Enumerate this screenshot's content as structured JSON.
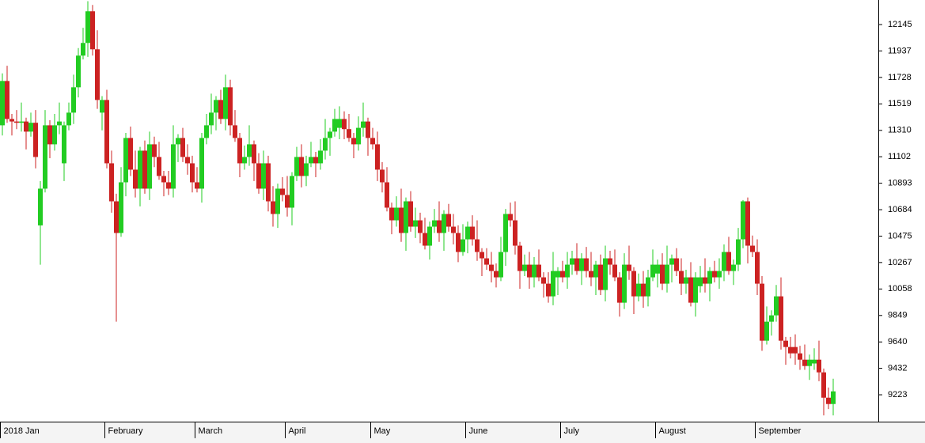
{
  "chart_data": {
    "type": "candlestick",
    "up_color": "#22cc22",
    "down_color": "#cc2222",
    "ylim": [
      9011,
      12339
    ],
    "yticks": [
      9223,
      9432,
      9640,
      9849,
      10058,
      10267,
      10475,
      10684,
      10893,
      11102,
      11310,
      11519,
      11728,
      11937,
      12145
    ],
    "categories": [
      "2018 Jan",
      null,
      null,
      null,
      null,
      null,
      null,
      null,
      null,
      null,
      null,
      null,
      null,
      null,
      null,
      null,
      null,
      null,
      null,
      null,
      null,
      null,
      "February",
      null,
      null,
      null,
      null,
      null,
      null,
      null,
      null,
      null,
      null,
      null,
      null,
      null,
      null,
      null,
      null,
      null,
      null,
      "March",
      null,
      null,
      null,
      null,
      null,
      null,
      null,
      null,
      null,
      null,
      null,
      null,
      null,
      null,
      null,
      null,
      null,
      null,
      "April",
      null,
      null,
      null,
      null,
      null,
      null,
      null,
      null,
      null,
      null,
      null,
      null,
      null,
      null,
      null,
      null,
      null,
      "May",
      null,
      null,
      null,
      null,
      null,
      null,
      null,
      null,
      null,
      null,
      null,
      null,
      null,
      null,
      null,
      null,
      null,
      null,
      null,
      "June",
      null,
      null,
      null,
      null,
      null,
      null,
      null,
      null,
      null,
      null,
      null,
      null,
      null,
      null,
      null,
      null,
      null,
      null,
      null,
      "July",
      null,
      null,
      null,
      null,
      null,
      null,
      null,
      null,
      null,
      null,
      null,
      null,
      null,
      null,
      null,
      null,
      null,
      null,
      null,
      "August",
      null,
      null,
      null,
      null,
      null,
      null,
      null,
      null,
      null,
      null,
      null,
      null,
      null,
      null,
      null,
      null,
      null,
      null,
      null,
      null,
      "September",
      null,
      null,
      null,
      null,
      null,
      null,
      null,
      null,
      null,
      null,
      null,
      null,
      null,
      null,
      null,
      null
    ],
    "open": [
      11350,
      11700,
      11400,
      11380,
      11370,
      11380,
      11300,
      11370,
      10560,
      10850,
      11350,
      11200,
      11350,
      11050,
      11350,
      11450,
      11650,
      11900,
      12000,
      12250,
      11950,
      11450,
      11550,
      11050,
      10750,
      10500,
      10900,
      11250,
      11000,
      10850,
      11150,
      10850,
      11200,
      11100,
      10950,
      10900,
      10850,
      11200,
      11250,
      11100,
      11050,
      10900,
      10850,
      11250,
      11350,
      11450,
      11550,
      11400,
      11650,
      11350,
      11250,
      11050,
      11100,
      11200,
      11050,
      10850,
      11050,
      10750,
      10650,
      10850,
      10800,
      10700,
      10950,
      11100,
      10950,
      11050,
      11100,
      11050,
      11150,
      11250,
      11300,
      11330,
      11400,
      11320,
      11250,
      11200,
      11330,
      11380,
      11250,
      11200,
      11000,
      10900,
      10700,
      10600,
      10700,
      10500,
      10750,
      10550,
      10600,
      10500,
      10400,
      10550,
      10600,
      10500,
      10650,
      10550,
      10500,
      10350,
      10450,
      10550,
      10450,
      10350,
      10300,
      10250,
      10200,
      10150,
      10350,
      10650,
      10600,
      10400,
      10200,
      10250,
      10150,
      10250,
      10150,
      10100,
      10000,
      10150,
      10200,
      10150,
      10250,
      10300,
      10200,
      10300,
      10200,
      10150,
      10250,
      10050,
      10300,
      10250,
      10150,
      9950,
      10250,
      10200,
      10000,
      10100,
      10000,
      10150,
      10180,
      10250,
      10100,
      10250,
      10300,
      10200,
      10100,
      10150,
      9950,
      10080,
      10150,
      10100,
      10200,
      10150,
      10200,
      10350,
      10200,
      10250,
      10450,
      10750,
      10400,
      10350,
      10100,
      9650,
      9800,
      9850,
      10000,
      9650,
      9600,
      9600,
      9550,
      9500,
      9450,
      9470,
      9500,
      9400,
      9200,
      9150
    ],
    "high": [
      11760,
      11820,
      11440,
      11470,
      11530,
      11410,
      11450,
      11470,
      10910,
      11470,
      11390,
      11440,
      11530,
      11380,
      11530,
      11750,
      11960,
      12120,
      12330,
      12300,
      12100,
      11580,
      11630,
      11150,
      10810,
      11020,
      11290,
      11340,
      11150,
      11180,
      11230,
      11300,
      11260,
      11220,
      10990,
      10990,
      11350,
      11280,
      11330,
      11200,
      11110,
      11020,
      11290,
      11440,
      11600,
      11580,
      11630,
      11750,
      11710,
      11470,
      11290,
      11190,
      11350,
      11230,
      11130,
      11150,
      11110,
      10870,
      10890,
      10940,
      10950,
      10980,
      11180,
      11200,
      11110,
      11220,
      11140,
      11240,
      11400,
      11330,
      11480,
      11500,
      11460,
      11440,
      11290,
      11420,
      11530,
      11410,
      11330,
      11300,
      11060,
      11020,
      10740,
      10790,
      10850,
      10780,
      10830,
      10700,
      10660,
      10620,
      10590,
      10690,
      10750,
      10680,
      10730,
      10650,
      10560,
      10570,
      10590,
      10640,
      10600,
      10380,
      10380,
      10350,
      10260,
      10470,
      10690,
      10740,
      10750,
      10430,
      10330,
      10350,
      10310,
      10370,
      10190,
      10190,
      10350,
      10230,
      10280,
      10350,
      10360,
      10420,
      10340,
      10390,
      10350,
      10280,
      10330,
      10400,
      10360,
      10370,
      10190,
      10340,
      10400,
      10230,
      10180,
      10200,
      10210,
      10370,
      10290,
      10340,
      10400,
      10330,
      10380,
      10300,
      10210,
      10270,
      10190,
      10240,
      10300,
      10230,
      10280,
      10300,
      10410,
      10470,
      10290,
      10540,
      10760,
      10780,
      10480,
      10450,
      10160,
      9920,
      9890,
      10090,
      10150,
      9680,
      9680,
      9700,
      9610,
      9620,
      9540,
      9590,
      9650,
      9430,
      9280,
      9350
    ],
    "low": [
      11270,
      11370,
      11270,
      11320,
      11300,
      11160,
      11260,
      11010,
      10250,
      10820,
      11090,
      11150,
      11280,
      10910,
      11310,
      11360,
      11570,
      11870,
      11890,
      11900,
      11480,
      11310,
      11010,
      10660,
      9800,
      10470,
      10790,
      10950,
      10780,
      10710,
      10810,
      10760,
      11020,
      10920,
      10790,
      10800,
      10780,
      11060,
      11060,
      10960,
      10820,
      10820,
      10740,
      11200,
      11280,
      11310,
      11360,
      11310,
      11270,
      11220,
      10940,
      11000,
      11030,
      10910,
      10810,
      10760,
      10670,
      10550,
      10540,
      10750,
      10630,
      10560,
      10910,
      10860,
      10870,
      11020,
      10940,
      11000,
      11080,
      11110,
      11260,
      11240,
      11240,
      11220,
      11090,
      11150,
      11260,
      11110,
      11160,
      10910,
      10820,
      10670,
      10490,
      10550,
      10430,
      10360,
      10510,
      10460,
      10420,
      10370,
      10290,
      10500,
      10430,
      10360,
      10510,
      10410,
      10270,
      10320,
      10340,
      10400,
      10280,
      10160,
      10210,
      10110,
      10070,
      10120,
      10240,
      10550,
      10330,
      10060,
      10160,
      10060,
      10070,
      10120,
      9990,
      9950,
      9930,
      10010,
      10110,
      10060,
      10170,
      10170,
      10090,
      10150,
      10080,
      10010,
      10010,
      9960,
      10170,
      10120,
      9840,
      9900,
      10130,
      9860,
      9960,
      9910,
      9920,
      10120,
      10070,
      10050,
      10030,
      10110,
      10160,
      10010,
      10020,
      9920,
      9840,
      10030,
      10030,
      9960,
      10110,
      10060,
      10120,
      10170,
      10090,
      10200,
      10380,
      10260,
      10310,
      10010,
      9570,
      9620,
      9690,
      9800,
      9580,
      9460,
      9510,
      9460,
      9420,
      9420,
      9340,
      9420,
      9330,
      9060,
      9110,
      9060
    ],
    "close": [
      11700,
      11400,
      11380,
      11370,
      11380,
      11300,
      11370,
      11100,
      10850,
      11350,
      11200,
      11350,
      11380,
      11350,
      11450,
      11650,
      11900,
      12000,
      12250,
      11950,
      11550,
      11550,
      11050,
      10750,
      10500,
      10900,
      11250,
      11000,
      10850,
      11150,
      10850,
      11200,
      11100,
      10950,
      10900,
      10850,
      11200,
      11250,
      11100,
      11050,
      10900,
      10850,
      11250,
      11350,
      11450,
      11550,
      11400,
      11650,
      11350,
      11250,
      11050,
      11100,
      11200,
      11050,
      10850,
      11050,
      10750,
      10650,
      10850,
      10800,
      10700,
      10950,
      11100,
      10950,
      11050,
      11100,
      11050,
      11150,
      11250,
      11300,
      11400,
      11400,
      11320,
      11250,
      11200,
      11330,
      11380,
      11250,
      11200,
      11000,
      10900,
      10700,
      10600,
      10700,
      10500,
      10750,
      10550,
      10600,
      10500,
      10400,
      10550,
      10600,
      10500,
      10650,
      10550,
      10500,
      10350,
      10450,
      10550,
      10450,
      10350,
      10300,
      10250,
      10200,
      10150,
      10350,
      10650,
      10600,
      10400,
      10200,
      10250,
      10150,
      10250,
      10150,
      10100,
      10000,
      10200,
      10200,
      10150,
      10250,
      10300,
      10200,
      10300,
      10200,
      10150,
      10250,
      10050,
      10300,
      10250,
      10150,
      9950,
      10250,
      10200,
      10000,
      10100,
      10000,
      10150,
      10250,
      10250,
      10100,
      10250,
      10300,
      10200,
      10100,
      10150,
      9950,
      10150,
      10150,
      10100,
      10200,
      10150,
      10200,
      10350,
      10200,
      10250,
      10450,
      10750,
      10400,
      10350,
      10100,
      9650,
      9800,
      9850,
      10000,
      9650,
      9600,
      9550,
      9550,
      9500,
      9450,
      9500,
      9500,
      9400,
      9200,
      9150,
      9250
    ]
  }
}
